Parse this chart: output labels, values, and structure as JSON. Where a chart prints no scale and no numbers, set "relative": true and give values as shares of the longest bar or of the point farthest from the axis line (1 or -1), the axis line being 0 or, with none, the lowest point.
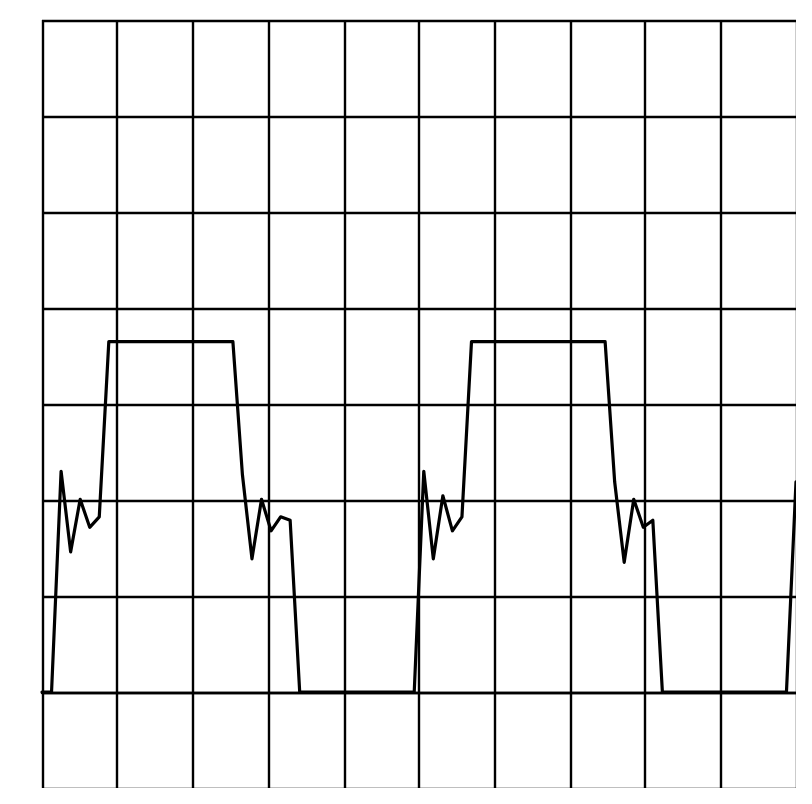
{
  "chart_data": {
    "type": "line",
    "relative": true,
    "grid": true,
    "line_style": "solid",
    "categories": [
      null,
      null,
      null,
      null,
      null,
      null,
      null,
      null,
      null,
      null,
      null,
      null,
      null,
      null,
      null,
      null,
      null,
      null,
      null,
      null,
      null,
      null,
      null,
      null,
      null,
      null,
      null,
      null,
      null,
      null,
      null,
      null,
      null,
      null,
      null,
      null,
      null,
      null,
      null,
      null,
      null,
      null,
      null,
      null,
      null,
      null,
      null,
      null,
      null,
      null,
      null,
      null,
      null,
      null,
      null,
      null,
      null,
      null,
      null,
      null,
      null,
      null,
      null,
      null,
      null,
      null,
      null,
      null,
      null,
      null,
      null,
      null,
      null,
      null,
      null,
      null,
      null,
      null,
      null,
      null
    ],
    "series": [
      {
        "color": "#000000",
        "values": [
          0,
          0,
          0.63,
          0.4,
          0.55,
          0.47,
          0.5,
          1,
          1,
          1,
          1,
          1,
          1,
          1,
          1,
          1,
          1,
          1,
          1,
          1,
          1,
          0.62,
          0.38,
          0.55,
          0.46,
          0.5,
          0.49,
          0,
          0,
          0,
          0,
          0,
          0,
          0,
          0,
          0,
          0,
          0,
          0,
          0,
          0.63,
          0.38,
          0.56,
          0.46,
          0.5,
          1,
          1,
          1,
          1,
          1,
          1,
          1,
          1,
          1,
          1,
          1,
          1,
          1,
          1,
          1,
          0.6,
          0.37,
          0.55,
          0.47,
          0.49,
          0,
          0,
          0,
          0,
          0,
          0,
          0,
          0,
          0,
          0,
          0,
          0,
          0,
          0,
          0.6
        ]
      }
    ]
  }
}
